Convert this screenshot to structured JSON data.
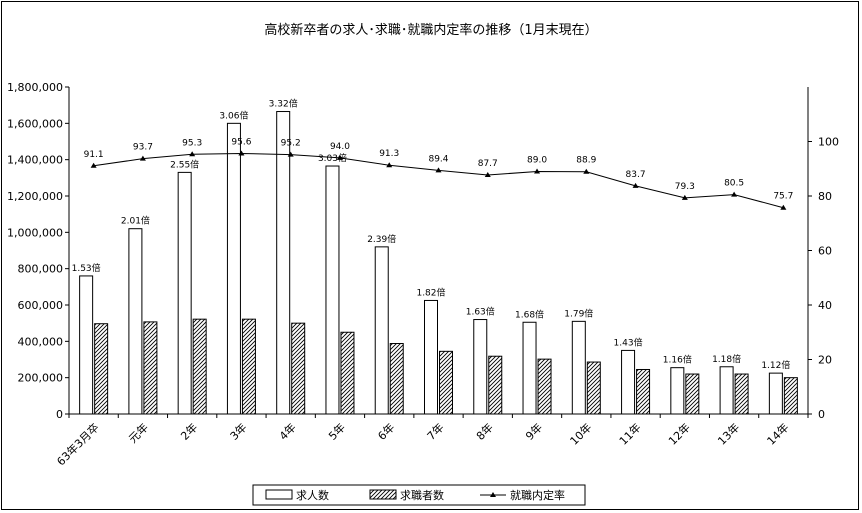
{
  "chart_data": {
    "type": "bar",
    "title": "高校新卒者の求人･求職･就職内定率の推移（1月末現在）",
    "categories": [
      "63年3月卒",
      "元年",
      "2年",
      "3年",
      "4年",
      "5年",
      "6年",
      "7年",
      "8年",
      "9年",
      "10年",
      "11年",
      "12年",
      "13年",
      "14年"
    ],
    "series": [
      {
        "name": "求人数",
        "kind": "bar",
        "fill": "#ffffff",
        "axis": "left",
        "values": [
          760000,
          1020000,
          1330000,
          1600000,
          1665000,
          1365000,
          920000,
          625000,
          520000,
          505000,
          510000,
          350000,
          255000,
          260000,
          225000
        ]
      },
      {
        "name": "求職者数",
        "kind": "bar",
        "fill": "hatch",
        "axis": "left",
        "values": [
          497000,
          507000,
          522000,
          522000,
          500000,
          450000,
          388000,
          345000,
          318000,
          302000,
          286000,
          245000,
          220000,
          220000,
          200000
        ]
      },
      {
        "name": "就職内定率",
        "kind": "line",
        "axis": "right",
        "values": [
          91.1,
          93.7,
          95.3,
          95.6,
          95.2,
          94.0,
          91.3,
          89.4,
          87.7,
          89.0,
          88.9,
          83.7,
          79.3,
          80.5,
          75.7
        ]
      }
    ],
    "ratio_labels": [
      "1.53倍",
      "2.01倍",
      "2.55倍",
      "3.06倍",
      "3.32倍",
      "3.03倍",
      "2.39倍",
      "1.82倍",
      "1.63倍",
      "1.68倍",
      "1.79倍",
      "1.43倍",
      "1.16倍",
      "1.18倍",
      "1.12倍"
    ],
    "rate_labels": [
      "91.1",
      "93.7",
      "95.3",
      "95.6",
      "95.2",
      "94.0",
      "91.3",
      "89.4",
      "87.7",
      "89.0",
      "88.9",
      "83.7",
      "79.3",
      "80.5",
      "75.7"
    ],
    "y_left": {
      "min": 0,
      "max": 1800000,
      "ticks": [
        0,
        200000,
        400000,
        600000,
        800000,
        1000000,
        1200000,
        1400000,
        1600000,
        1800000
      ],
      "tick_labels": [
        "0",
        "200,000",
        "400,000",
        "600,000",
        "800,000",
        "1,000,000",
        "1,200,000",
        "1,400,000",
        "1,600,000",
        "1,800,000"
      ]
    },
    "y_right": {
      "min": 0,
      "max": 120,
      "ticks": [
        0,
        20,
        40,
        60,
        80,
        100
      ],
      "tick_labels": [
        "0",
        "20",
        "40",
        "60",
        "80",
        "100"
      ]
    },
    "grid": false,
    "legend_position": "bottom"
  }
}
